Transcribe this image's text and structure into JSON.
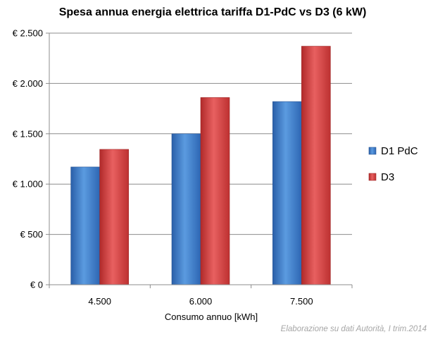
{
  "chart_data": {
    "type": "bar",
    "title": "Spesa annua energia elettrica tariffa D1-PdC vs D3 (6 kW)",
    "xlabel": "Consumo annuo [kWh]",
    "ylabel": "",
    "categories": [
      "4.500",
      "6.000",
      "7.500"
    ],
    "series": [
      {
        "name": "D1 PdC",
        "values": [
          1170,
          1500,
          1820
        ],
        "color": "#3b78c9"
      },
      {
        "name": "D3",
        "values": [
          1345,
          1860,
          2370
        ],
        "color": "#d13b3b"
      }
    ],
    "ylim": [
      0,
      2500
    ],
    "yticks": [
      0,
      500,
      1000,
      1500,
      2000,
      2500
    ],
    "ytick_labels": [
      "€ 0",
      "€ 500",
      "€ 1.000",
      "€ 1.500",
      "€ 2.000",
      "€ 2.500"
    ],
    "legend_position": "right",
    "grid": true,
    "source_note": "Elaborazione su dati Autorità, I trim.2014"
  }
}
